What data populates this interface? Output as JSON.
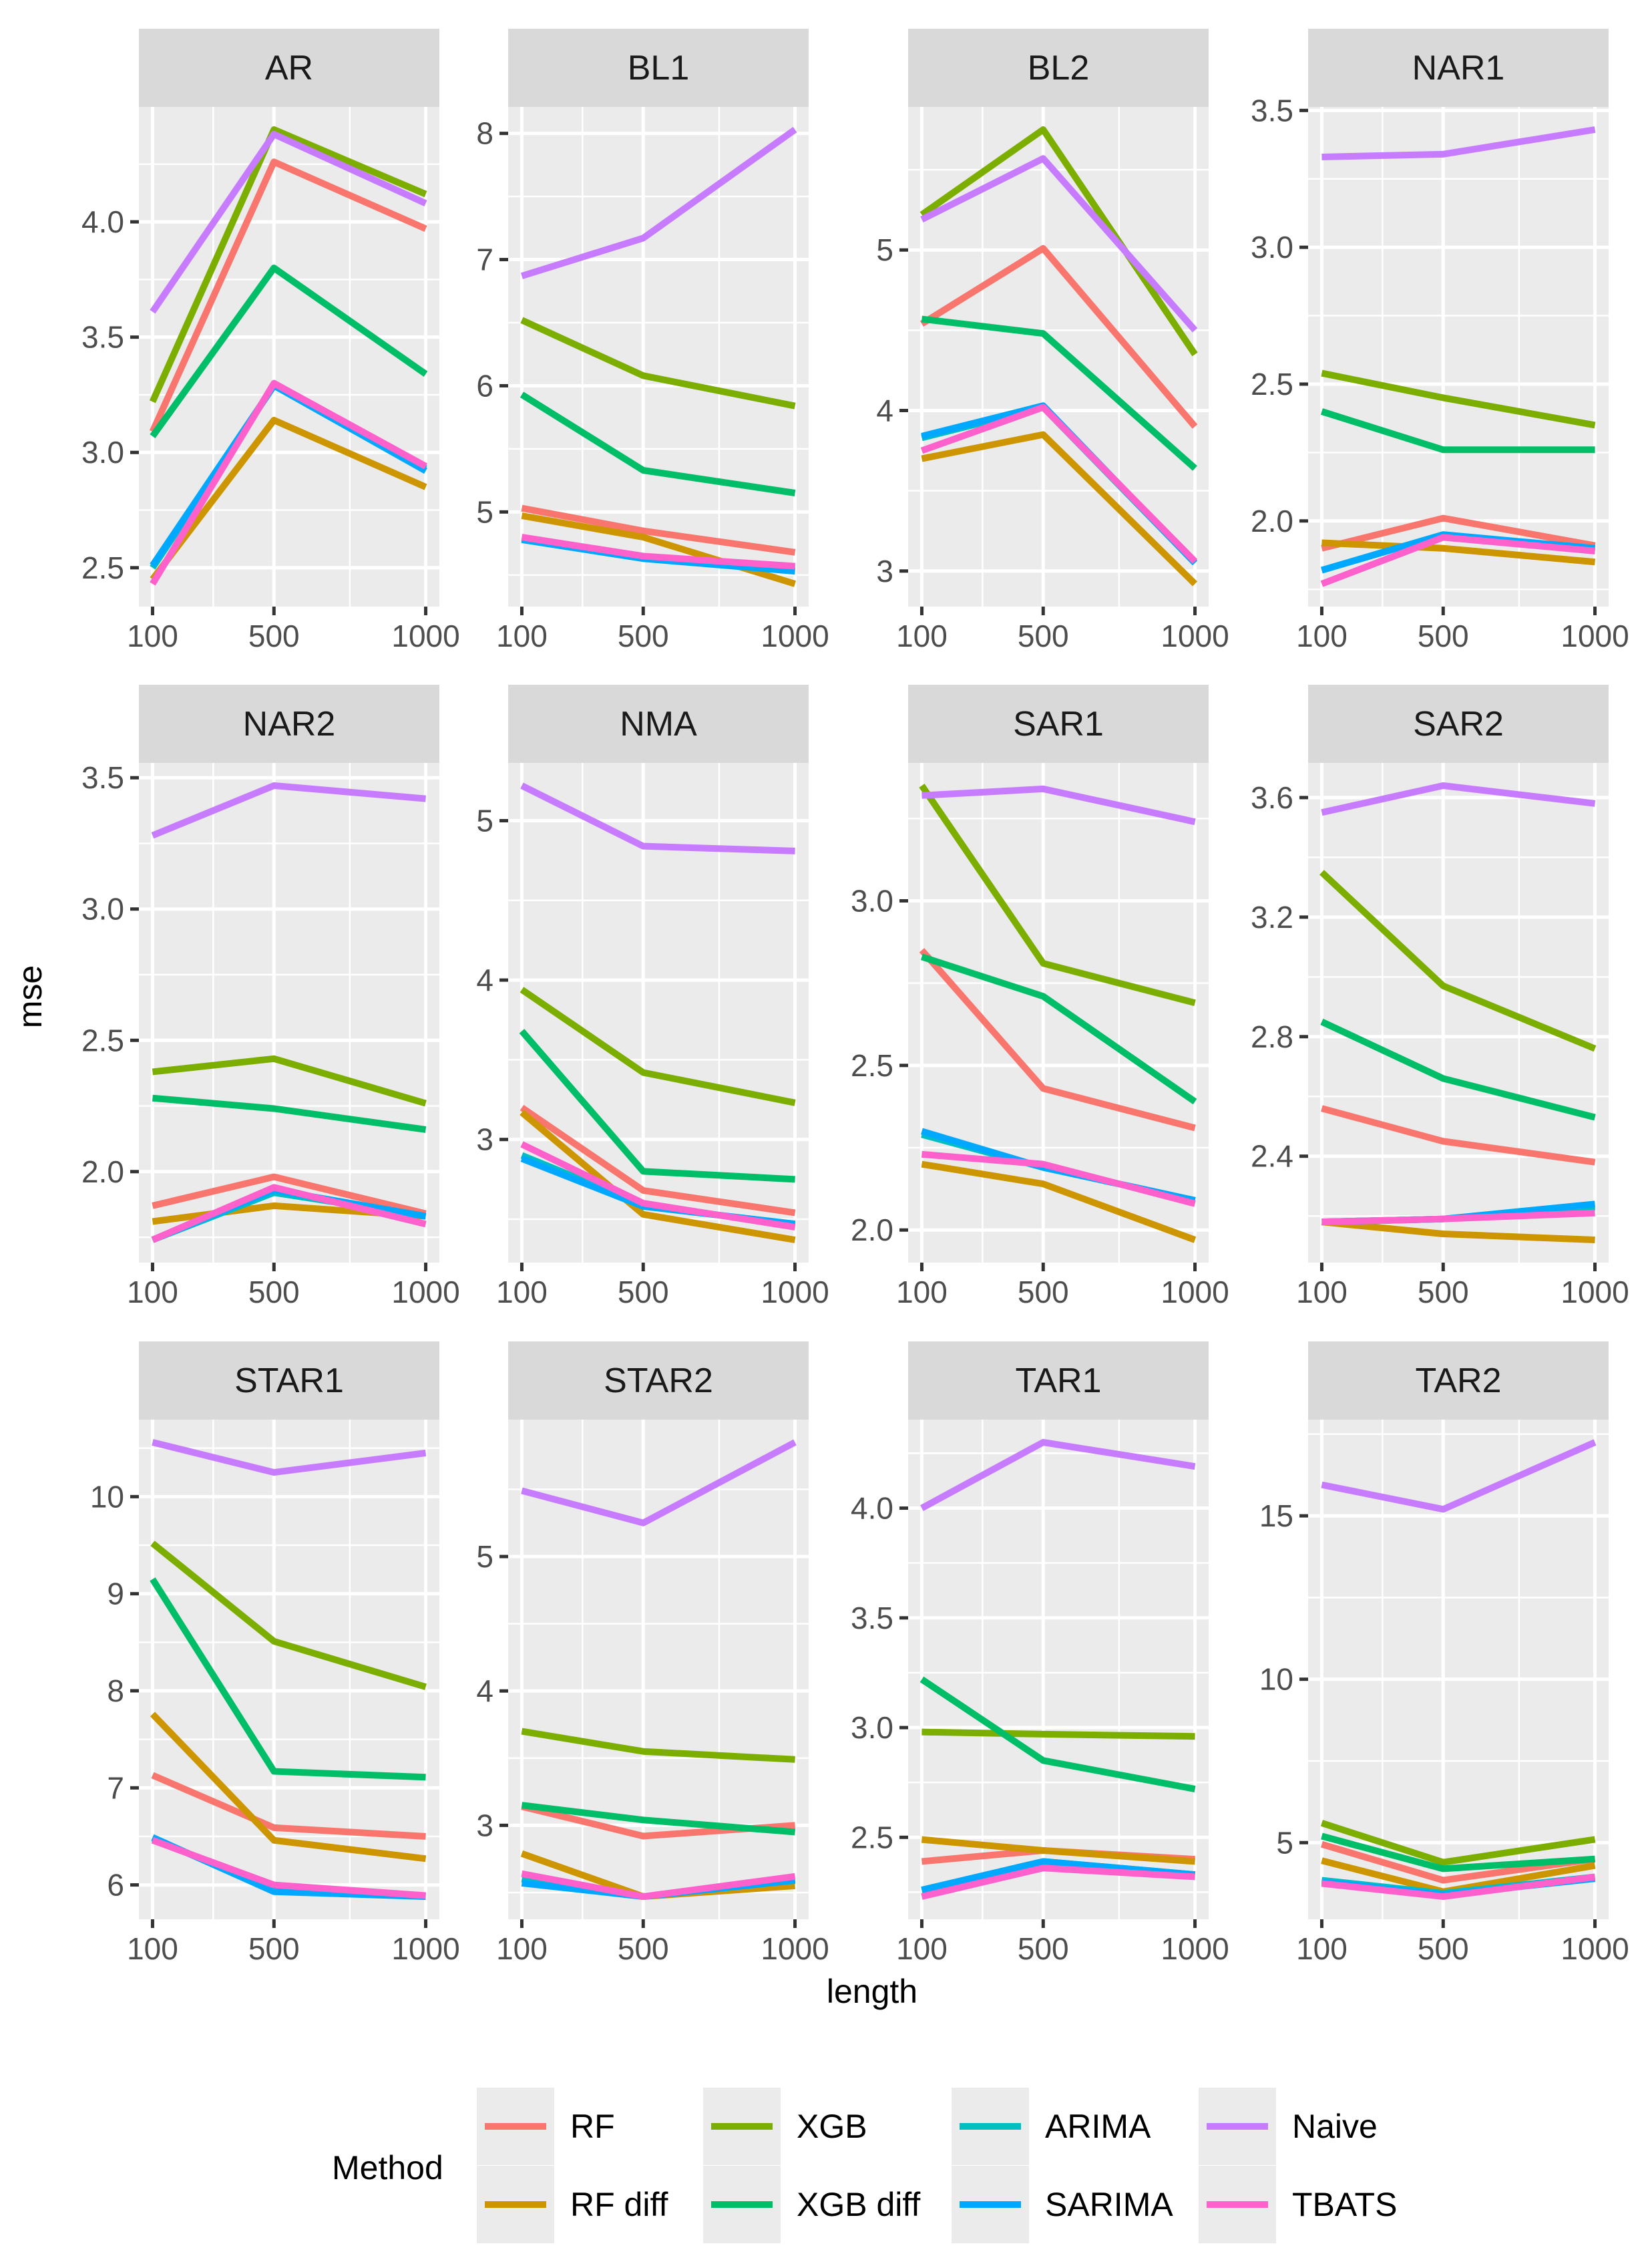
{
  "chart_data": {
    "type": "line",
    "layout": "facet_wrap 3x4, free y scales",
    "xlabel": "length",
    "ylabel": "mse",
    "x": [
      100,
      500,
      1000
    ],
    "x_ticks": [
      "100",
      "500",
      "1000"
    ],
    "xlim": [
      55,
      1045
    ],
    "grid": true,
    "legend": {
      "title": "Method",
      "placement": "bottom",
      "entries": [
        {
          "name": "RF",
          "color": "#F8766D"
        },
        {
          "name": "RF diff",
          "color": "#CD9600"
        },
        {
          "name": "XGB",
          "color": "#7CAE00"
        },
        {
          "name": "XGB diff",
          "color": "#00BE67"
        },
        {
          "name": "ARIMA",
          "color": "#00BFC4"
        },
        {
          "name": "SARIMA",
          "color": "#00A9FF"
        },
        {
          "name": "Naive",
          "color": "#C77CFF"
        },
        {
          "name": "TBATS",
          "color": "#FF61CC"
        }
      ]
    },
    "panels": [
      {
        "title": "AR",
        "y_ticks": [
          "2.5",
          "3.0",
          "3.5",
          "4.0"
        ],
        "series": {
          "RF": [
            3.09,
            4.26,
            3.97
          ],
          "RF diff": [
            2.45,
            3.14,
            2.85
          ],
          "XGB": [
            3.22,
            4.4,
            4.12
          ],
          "XGB diff": [
            3.07,
            3.8,
            3.34
          ],
          "ARIMA": [
            2.5,
            3.29,
            2.93
          ],
          "SARIMA": [
            2.51,
            3.29,
            2.92
          ],
          "Naive": [
            3.61,
            4.38,
            4.08
          ],
          "TBATS": [
            2.43,
            3.3,
            2.94
          ]
        }
      },
      {
        "title": "BL1",
        "y_ticks": [
          "5",
          "6",
          "7",
          "8"
        ],
        "series": {
          "RF": [
            5.03,
            4.85,
            4.68
          ],
          "RF diff": [
            4.97,
            4.8,
            4.43
          ],
          "XGB": [
            6.52,
            6.08,
            5.84
          ],
          "XGB diff": [
            5.93,
            5.33,
            5.15
          ],
          "ARIMA": [
            4.79,
            4.64,
            4.55
          ],
          "SARIMA": [
            4.78,
            4.63,
            4.53
          ],
          "Naive": [
            6.87,
            7.17,
            8.03
          ],
          "TBATS": [
            4.8,
            4.65,
            4.57
          ]
        }
      },
      {
        "title": "BL2",
        "y_ticks": [
          "3",
          "4",
          "5"
        ],
        "series": {
          "RF": [
            4.54,
            5.01,
            3.9
          ],
          "RF diff": [
            3.7,
            3.85,
            2.92
          ],
          "XGB": [
            5.22,
            5.75,
            4.35
          ],
          "XGB diff": [
            4.57,
            4.48,
            3.64
          ],
          "ARIMA": [
            3.83,
            4.02,
            3.05
          ],
          "SARIMA": [
            3.84,
            4.03,
            3.05
          ],
          "Naive": [
            5.19,
            5.57,
            4.5
          ],
          "TBATS": [
            3.75,
            4.02,
            3.06
          ]
        }
      },
      {
        "title": "NAR1",
        "y_ticks": [
          "2.0",
          "2.5",
          "3.0",
          "3.5"
        ],
        "series": {
          "RF": [
            1.9,
            2.01,
            1.91
          ],
          "RF diff": [
            1.92,
            1.9,
            1.85
          ],
          "XGB": [
            2.54,
            2.45,
            2.35
          ],
          "XGB diff": [
            2.4,
            2.26,
            2.26
          ],
          "ARIMA": [
            1.82,
            1.95,
            1.89
          ],
          "SARIMA": [
            1.82,
            1.95,
            1.9
          ],
          "Naive": [
            3.33,
            3.34,
            3.43
          ],
          "TBATS": [
            1.77,
            1.94,
            1.89
          ]
        }
      },
      {
        "title": "NAR2",
        "y_ticks": [
          "2.0",
          "2.5",
          "3.0",
          "3.5"
        ],
        "series": {
          "RF": [
            1.87,
            1.98,
            1.84
          ],
          "RF diff": [
            1.81,
            1.87,
            1.83
          ],
          "XGB": [
            2.38,
            2.43,
            2.26
          ],
          "XGB diff": [
            2.28,
            2.24,
            2.16
          ],
          "ARIMA": [
            1.74,
            1.92,
            1.83
          ],
          "SARIMA": [
            1.74,
            1.93,
            1.83
          ],
          "Naive": [
            3.28,
            3.47,
            3.42
          ],
          "TBATS": [
            1.74,
            1.94,
            1.8
          ]
        }
      },
      {
        "title": "NMA",
        "y_ticks": [
          "3",
          "4",
          "5"
        ],
        "series": {
          "RF": [
            3.2,
            2.68,
            2.54
          ],
          "RF diff": [
            3.17,
            2.53,
            2.37
          ],
          "XGB": [
            3.94,
            3.42,
            3.23
          ],
          "XGB diff": [
            3.68,
            2.8,
            2.75
          ],
          "ARIMA": [
            2.9,
            2.59,
            2.46
          ],
          "SARIMA": [
            2.88,
            2.58,
            2.47
          ],
          "Naive": [
            5.22,
            4.84,
            4.81
          ],
          "TBATS": [
            2.97,
            2.6,
            2.45
          ]
        }
      },
      {
        "title": "SAR1",
        "y_ticks": [
          "2.0",
          "2.5",
          "3.0"
        ],
        "series": {
          "RF": [
            2.85,
            2.43,
            2.31
          ],
          "RF diff": [
            2.2,
            2.14,
            1.97
          ],
          "XGB": [
            3.35,
            2.81,
            2.69
          ],
          "XGB diff": [
            2.83,
            2.71,
            2.39
          ],
          "ARIMA": [
            2.29,
            2.19,
            2.09
          ],
          "SARIMA": [
            2.3,
            2.19,
            2.09
          ],
          "Naive": [
            3.32,
            3.34,
            3.24
          ],
          "TBATS": [
            2.23,
            2.2,
            2.08
          ]
        }
      },
      {
        "title": "SAR2",
        "y_ticks": [
          "2.4",
          "2.8",
          "3.2",
          "3.6"
        ],
        "series": {
          "RF": [
            2.56,
            2.45,
            2.38
          ],
          "RF diff": [
            2.18,
            2.14,
            2.12
          ],
          "XGB": [
            3.35,
            2.97,
            2.76
          ],
          "XGB diff": [
            2.85,
            2.66,
            2.53
          ],
          "ARIMA": [
            2.18,
            2.19,
            2.23
          ],
          "SARIMA": [
            2.18,
            2.19,
            2.24
          ],
          "Naive": [
            3.55,
            3.64,
            3.58
          ],
          "TBATS": [
            2.18,
            2.19,
            2.21
          ]
        }
      },
      {
        "title": "STAR1",
        "y_ticks": [
          "6",
          "7",
          "8",
          "9",
          "10"
        ],
        "series": {
          "RF": [
            7.13,
            6.59,
            6.5
          ],
          "RF diff": [
            7.76,
            6.46,
            6.27
          ],
          "XGB": [
            9.52,
            8.51,
            8.04
          ],
          "XGB diff": [
            9.15,
            7.17,
            7.11
          ],
          "ARIMA": [
            6.48,
            5.95,
            5.88
          ],
          "SARIMA": [
            6.49,
            5.93,
            5.88
          ],
          "Naive": [
            10.56,
            10.25,
            10.45
          ],
          "TBATS": [
            6.46,
            6.0,
            5.89
          ]
        }
      },
      {
        "title": "STAR2",
        "y_ticks": [
          "3",
          "4",
          "5"
        ],
        "series": {
          "RF": [
            3.14,
            2.92,
            3.0
          ],
          "RF diff": [
            2.79,
            2.47,
            2.55
          ],
          "XGB": [
            3.7,
            3.55,
            3.49
          ],
          "XGB diff": [
            3.15,
            3.04,
            2.95
          ],
          "ARIMA": [
            2.6,
            2.47,
            2.6
          ],
          "SARIMA": [
            2.57,
            2.47,
            2.59
          ],
          "Naive": [
            5.49,
            5.25,
            5.85
          ],
          "TBATS": [
            2.64,
            2.47,
            2.62
          ]
        }
      },
      {
        "title": "TAR1",
        "y_ticks": [
          "2.5",
          "3.0",
          "3.5",
          "4.0"
        ],
        "series": {
          "RF": [
            2.39,
            2.44,
            2.4
          ],
          "RF diff": [
            2.49,
            2.44,
            2.39
          ],
          "XGB": [
            2.98,
            2.97,
            2.96
          ],
          "XGB diff": [
            3.22,
            2.85,
            2.72
          ],
          "ARIMA": [
            2.26,
            2.39,
            2.33
          ],
          "SARIMA": [
            2.26,
            2.39,
            2.33
          ],
          "Naive": [
            4.0,
            4.3,
            4.19
          ],
          "TBATS": [
            2.23,
            2.36,
            2.32
          ]
        }
      },
      {
        "title": "TAR2",
        "y_ticks": [
          "5",
          "10",
          "15"
        ],
        "series": {
          "RF": [
            4.95,
            3.85,
            4.5
          ],
          "RF diff": [
            4.45,
            3.5,
            4.3
          ],
          "XGB": [
            5.6,
            4.4,
            5.1
          ],
          "XGB diff": [
            5.2,
            4.2,
            4.5
          ],
          "ARIMA": [
            3.85,
            3.45,
            3.95
          ],
          "SARIMA": [
            3.8,
            3.4,
            3.9
          ],
          "Naive": [
            15.95,
            15.2,
            17.25
          ],
          "TBATS": [
            3.75,
            3.35,
            3.95
          ]
        }
      }
    ]
  }
}
